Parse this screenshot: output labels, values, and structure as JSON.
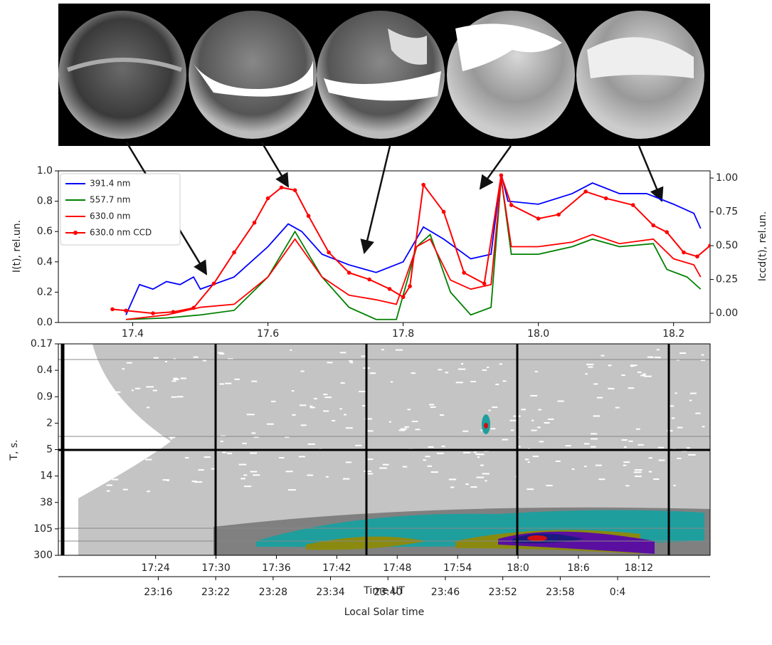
{
  "chart_data": [
    {
      "type": "line",
      "ylabel": "I(t), rel.un.",
      "y2label": "Iccd(t), rel.un.",
      "xlim": [
        17.29,
        18.254
      ],
      "xticks": [
        17.4,
        17.6,
        17.8,
        {
          "value": 18,
          "label": "18.0"
        },
        18.2
      ],
      "ylim": [
        0,
        1
      ],
      "yticks": [
        {
          "value": 0,
          "label": "0.0"
        },
        0.2,
        0.4,
        0.6,
        0.8,
        {
          "value": 1,
          "label": "1.0"
        }
      ],
      "y2lim": [
        -0.068,
        1.053
      ],
      "y2ticks": [
        {
          "value": 0,
          "label": "0.00"
        },
        0.25,
        {
          "value": 0.5,
          "label": "0.50"
        },
        0.75,
        {
          "value": 1,
          "label": "1.00"
        }
      ],
      "legend": "upper left",
      "series": [
        {
          "name": "391.4 nm",
          "color": "#0000ff",
          "x": [
            17.39,
            17.41,
            17.43,
            17.45,
            17.47,
            17.49,
            17.5,
            17.55,
            17.6,
            17.63,
            17.65,
            17.68,
            17.72,
            17.76,
            17.8,
            17.83,
            17.86,
            17.9,
            17.93,
            17.945,
            17.955,
            18.0,
            18.05,
            18.08,
            18.12,
            18.16,
            18.2,
            18.23,
            18.24
          ],
          "values": [
            0.05,
            0.25,
            0.22,
            0.27,
            0.25,
            0.3,
            0.22,
            0.3,
            0.5,
            0.65,
            0.6,
            0.45,
            0.38,
            0.33,
            0.4,
            0.63,
            0.55,
            0.42,
            0.45,
            0.98,
            0.8,
            0.78,
            0.85,
            0.92,
            0.85,
            0.85,
            0.78,
            0.72,
            0.62
          ]
        },
        {
          "name": "557.7 nm",
          "color": "#008000",
          "x": [
            17.39,
            17.45,
            17.5,
            17.55,
            17.6,
            17.64,
            17.68,
            17.72,
            17.76,
            17.79,
            17.82,
            17.84,
            17.87,
            17.9,
            17.93,
            17.945,
            17.96,
            18.0,
            18.05,
            18.08,
            18.12,
            18.17,
            18.19,
            18.22,
            18.24
          ],
          "values": [
            0.02,
            0.03,
            0.05,
            0.08,
            0.3,
            0.6,
            0.3,
            0.1,
            0.02,
            0.02,
            0.5,
            0.58,
            0.2,
            0.05,
            0.1,
            0.95,
            0.45,
            0.45,
            0.5,
            0.55,
            0.5,
            0.52,
            0.35,
            0.3,
            0.22
          ]
        },
        {
          "name": "630.0 nm",
          "color": "#ff0000",
          "x": [
            17.39,
            17.45,
            17.5,
            17.55,
            17.6,
            17.64,
            17.68,
            17.72,
            17.76,
            17.79,
            17.82,
            17.84,
            17.87,
            17.9,
            17.93,
            17.945,
            17.96,
            18.0,
            18.05,
            18.08,
            18.12,
            18.17,
            18.2,
            18.23,
            18.24
          ],
          "values": [
            0.02,
            0.05,
            0.1,
            0.12,
            0.3,
            0.55,
            0.3,
            0.18,
            0.15,
            0.12,
            0.5,
            0.55,
            0.28,
            0.22,
            0.25,
            0.95,
            0.5,
            0.5,
            0.53,
            0.58,
            0.52,
            0.55,
            0.42,
            0.38,
            0.3
          ]
        },
        {
          "name": "630.0 nm CCD",
          "color": "#ff0000",
          "axis": "y2",
          "marker": "o",
          "x": [
            17.37,
            17.39,
            17.43,
            17.46,
            17.49,
            17.52,
            17.55,
            17.58,
            17.6,
            17.62,
            17.64,
            17.66,
            17.69,
            17.72,
            17.75,
            17.78,
            17.8,
            17.81,
            17.83,
            17.86,
            17.89,
            17.92,
            17.945,
            17.96,
            18.0,
            18.03,
            18.07,
            18.1,
            18.14,
            18.17,
            18.19,
            18.215,
            18.235,
            18.254
          ],
          "values": [
            0.03,
            0.02,
            0,
            0.01,
            0.04,
            0.22,
            0.45,
            0.67,
            0.85,
            0.93,
            0.91,
            0.72,
            0.45,
            0.3,
            0.25,
            0.18,
            0.12,
            0.2,
            0.95,
            0.75,
            0.3,
            0.22,
            1.02,
            0.8,
            0.7,
            0.73,
            0.9,
            0.85,
            0.8,
            0.65,
            0.6,
            0.45,
            0.42,
            0.5
          ]
        }
      ]
    },
    {
      "type": "spectrogram",
      "ylabel": "T, s.",
      "ylabels": [
        0.17,
        0.4,
        0.9,
        2,
        5,
        14,
        38,
        105,
        300
      ],
      "xlabel": "Time UT",
      "xlim": [
        17.239,
        18.318
      ],
      "xticks": [
        {
          "value": 17.4,
          "label": "17:24"
        },
        {
          "value": 17.5,
          "label": "17:30"
        },
        {
          "value": 17.6,
          "label": "17:36"
        },
        {
          "value": 17.7,
          "label": "17:42"
        },
        {
          "value": 17.8,
          "label": "17:48"
        },
        {
          "value": 17.9,
          "label": "17:54"
        },
        {
          "value": 18,
          "label": "18:0"
        },
        {
          "value": 18.1,
          "label": "18:6"
        },
        {
          "value": 18.2,
          "label": "18:12"
        }
      ],
      "x2label": "Local Solar time",
      "x2lim": [
        23.093,
        24.228
      ],
      "x2ticks": [
        {
          "value": 23.267,
          "label": "23:16"
        },
        {
          "value": 23.367,
          "label": "23:22"
        },
        {
          "value": 23.467,
          "label": "23:28"
        },
        {
          "value": 23.567,
          "label": "23:34"
        },
        {
          "value": 23.667,
          "label": "23:40"
        },
        {
          "value": 23.767,
          "label": "23:46"
        },
        {
          "value": 23.867,
          "label": "23:52"
        },
        {
          "value": 23.967,
          "label": "23:58"
        },
        {
          "value": 24.067,
          "label": "0:4"
        }
      ]
    }
  ]
}
